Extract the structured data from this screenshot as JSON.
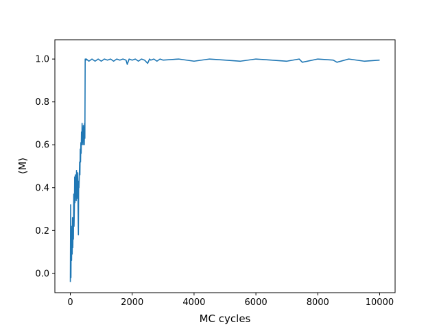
{
  "chart_data": {
    "type": "line",
    "title": "",
    "xlabel": "MC cycles",
    "ylabel": "⟨M⟩",
    "xlim": [
      -500,
      10500
    ],
    "ylim": [
      -0.09,
      1.09
    ],
    "xticks": [
      0,
      2000,
      4000,
      6000,
      8000,
      10000
    ],
    "yticks": [
      0.0,
      0.2,
      0.4,
      0.6,
      0.8,
      1.0
    ],
    "xtick_labels": [
      "0",
      "2000",
      "4000",
      "6000",
      "8000",
      "10000"
    ],
    "ytick_labels": [
      "0.0",
      "0.2",
      "0.4",
      "0.6",
      "0.8",
      "1.0"
    ],
    "grid": false,
    "legend": "none",
    "series": [
      {
        "color": "#1f77b4",
        "x": [
          0,
          10,
          20,
          30,
          40,
          50,
          60,
          70,
          80,
          90,
          100,
          110,
          120,
          130,
          140,
          150,
          160,
          170,
          180,
          190,
          200,
          210,
          220,
          230,
          240,
          250,
          260,
          270,
          280,
          290,
          300,
          310,
          320,
          330,
          340,
          350,
          360,
          370,
          380,
          390,
          400,
          410,
          420,
          430,
          440,
          450,
          460,
          470,
          480,
          490,
          500,
          510,
          520,
          600,
          700,
          800,
          900,
          1000,
          1100,
          1200,
          1300,
          1400,
          1500,
          1600,
          1700,
          1800,
          1840,
          1900,
          2000,
          2100,
          2200,
          2300,
          2400,
          2500,
          2560,
          2600,
          2700,
          2800,
          2900,
          3000,
          3500,
          4000,
          4500,
          5000,
          5500,
          6000,
          6500,
          7000,
          7400,
          7500,
          8000,
          8500,
          8620,
          9000,
          9500,
          10000
        ],
        "y": [
          -0.04,
          0.32,
          -0.02,
          0.22,
          0.06,
          0.17,
          0.09,
          0.26,
          0.12,
          0.22,
          0.16,
          0.37,
          0.22,
          0.3,
          0.45,
          0.33,
          0.46,
          0.38,
          0.41,
          0.34,
          0.48,
          0.35,
          0.43,
          0.38,
          0.47,
          0.3,
          0.18,
          0.43,
          0.4,
          0.45,
          0.52,
          0.46,
          0.58,
          0.52,
          0.61,
          0.56,
          0.66,
          0.6,
          0.7,
          0.61,
          0.66,
          0.6,
          0.69,
          0.62,
          0.68,
          0.6,
          0.7,
          0.63,
          1.0,
          1.0,
          1.0,
          0.995,
          1.0,
          0.99,
          1.0,
          0.99,
          1.0,
          0.99,
          1.0,
          0.995,
          1.0,
          0.99,
          1.0,
          0.995,
          1.0,
          0.995,
          0.975,
          1.0,
          0.995,
          1.0,
          0.99,
          1.0,
          0.995,
          0.98,
          1.0,
          0.995,
          1.0,
          0.99,
          1.0,
          0.995,
          1.0,
          0.99,
          1.0,
          0.995,
          0.99,
          1.0,
          0.995,
          0.99,
          1.0,
          0.985,
          1.0,
          0.995,
          0.985,
          1.0,
          0.99,
          0.995
        ]
      }
    ]
  }
}
